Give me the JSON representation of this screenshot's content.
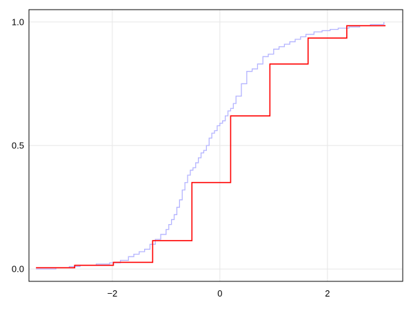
{
  "chart_data": {
    "type": "line",
    "title": "",
    "xlabel": "",
    "ylabel": "",
    "xlim": [
      -3.55,
      3.4
    ],
    "ylim": [
      -0.05,
      1.05
    ],
    "x_ticks": [
      -2,
      0,
      2
    ],
    "x_tick_labels": [
      "−2",
      "0",
      "2"
    ],
    "y_ticks": [
      0.0,
      0.5,
      1.0
    ],
    "y_tick_labels": [
      "0.0",
      "0.5",
      "1.0"
    ],
    "grid": true,
    "legend": "none",
    "series": [
      {
        "color": "#b3b3ff",
        "style": "empirical-cdf-step",
        "x": [
          -3.42,
          -3.05,
          -2.8,
          -2.6,
          -2.3,
          -2.05,
          -1.85,
          -1.7,
          -1.6,
          -1.5,
          -1.4,
          -1.3,
          -1.2,
          -1.1,
          -1.0,
          -0.95,
          -0.9,
          -0.85,
          -0.8,
          -0.75,
          -0.7,
          -0.65,
          -0.6,
          -0.55,
          -0.5,
          -0.45,
          -0.4,
          -0.35,
          -0.3,
          -0.25,
          -0.2,
          -0.15,
          -0.1,
          -0.05,
          0.0,
          0.05,
          0.1,
          0.15,
          0.2,
          0.25,
          0.3,
          0.4,
          0.5,
          0.6,
          0.7,
          0.8,
          0.9,
          1.0,
          1.1,
          1.2,
          1.3,
          1.4,
          1.5,
          1.6,
          1.75,
          1.9,
          2.05,
          2.2,
          2.4,
          2.6,
          2.8,
          3.05
        ],
        "y": [
          0.0,
          0.005,
          0.01,
          0.015,
          0.02,
          0.025,
          0.035,
          0.05,
          0.06,
          0.07,
          0.08,
          0.1,
          0.12,
          0.14,
          0.16,
          0.18,
          0.2,
          0.22,
          0.25,
          0.28,
          0.32,
          0.35,
          0.38,
          0.4,
          0.41,
          0.43,
          0.45,
          0.47,
          0.48,
          0.5,
          0.53,
          0.55,
          0.56,
          0.58,
          0.59,
          0.6,
          0.62,
          0.64,
          0.65,
          0.67,
          0.7,
          0.75,
          0.8,
          0.81,
          0.83,
          0.86,
          0.87,
          0.89,
          0.9,
          0.91,
          0.92,
          0.93,
          0.94,
          0.95,
          0.96,
          0.965,
          0.97,
          0.975,
          0.98,
          0.985,
          0.99,
          1.0
        ]
      },
      {
        "color": "#ff0000",
        "style": "step",
        "x": [
          -3.42,
          -2.7,
          -1.98,
          -1.25,
          -0.52,
          0.2,
          0.93,
          1.64,
          2.36,
          3.08
        ],
        "y": [
          0.005,
          0.015,
          0.027,
          0.115,
          0.35,
          0.62,
          0.83,
          0.935,
          0.985,
          0.985
        ]
      }
    ]
  }
}
